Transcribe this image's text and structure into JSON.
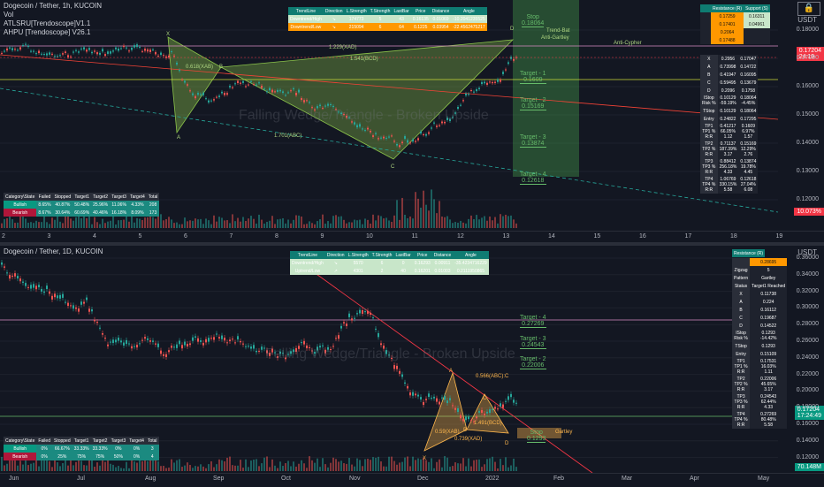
{
  "top": {
    "title": "Dogecoin / Tether, 1h, KUCOIN",
    "indicators": [
      "Vol",
      "ATLSRU[Trendoscope]V1.1",
      "AHPU [Trendoscope] V26.1"
    ],
    "currency": "USDT",
    "sync_icon": "lock-icon",
    "y_ticks": [
      "0.18000",
      "0.17000",
      "0.16000",
      "0.15000",
      "0.14000",
      "0.13000",
      "0.12000"
    ],
    "x_ticks": [
      "2",
      "3",
      "4",
      "5",
      "6",
      "7",
      "8",
      "9",
      "10",
      "11",
      "12",
      "13",
      "14",
      "15",
      "16",
      "17",
      "18",
      "19"
    ],
    "price_badge": "0.17204",
    "price_time": "24:19",
    "pct_badge": "10.073%",
    "watermark": "Falling Wedge/Triangle - Broken Upside",
    "trend_table": {
      "headers": [
        "TrendLine",
        "Direction",
        "L.Strength",
        "T.Strength",
        "LastBar",
        "Price",
        "Distance",
        "Angle"
      ],
      "rows": [
        [
          "Downtrend/High",
          "↘",
          "174773",
          "5",
          "43",
          "0.16135",
          "0.01069",
          "-10.2041235525"
        ],
        [
          "Downtrend/Low",
          "↘",
          "215094",
          "6",
          "64",
          "0.1225",
          "0.03954",
          "-22.4562475217"
        ]
      ]
    },
    "stats_table": {
      "headers": [
        "Category\\State",
        "Failed",
        "Stopped",
        "Target1",
        "Target2",
        "Target3",
        "Target4",
        "Total"
      ],
      "rows": [
        [
          "Bullish",
          "8.65%",
          "40.87%",
          "50.48%",
          "25.96%",
          "11.06%",
          "4.33%",
          "208"
        ],
        [
          "Bearish",
          "8.67%",
          "30.64%",
          "60.69%",
          "40.46%",
          "16.18%",
          "8.09%",
          "173"
        ]
      ]
    },
    "targets": [
      {
        "label": "Stop",
        "value": "0.18064"
      },
      {
        "label": "Target - 1",
        "value": "0.1609"
      },
      {
        "label": "Target - 2",
        "value": "0.15169"
      },
      {
        "label": "Target - 3",
        "value": "0.13874"
      },
      {
        "label": "Target - 4",
        "value": "0.12618"
      }
    ],
    "pattern_labels": [
      "X",
      "A",
      "B",
      "C",
      "D"
    ],
    "annotations": [
      "0.618(XAB)",
      "1.229(XAD)",
      "1.541(BCD)",
      "1.701(ABC)",
      "Trend-Bat",
      "Anti-Gartley",
      "Anti-Cypher"
    ],
    "res_sup_table": {
      "headers": [
        "Resistance (R)",
        "Support (S)"
      ],
      "rows": [
        [
          "0.17259",
          "0.16311"
        ],
        [
          "0.17401",
          "0.04961"
        ],
        [
          "0.2064",
          ""
        ],
        [
          "0.17488",
          ""
        ]
      ]
    },
    "pattern_table": [
      [
        "X",
        "0.2956",
        "0.17047"
      ],
      [
        "A",
        "0.73998",
        "0.14722"
      ],
      [
        "B",
        "0.41947",
        "0.16095"
      ],
      [
        "C",
        "0.59495",
        "0.13679"
      ],
      [
        "D",
        "0.2096",
        "0.1758"
      ],
      [
        "IStop\nRisk %",
        "0.10129\n-59.19%",
        "0.18064\n-4.45%"
      ],
      [
        "TStop",
        "0.10129",
        "0.18064"
      ],
      [
        "Entry",
        "0.24822",
        "0.17295"
      ],
      [
        "TP1\nTP1 %\nR:R",
        "0.41217\n66.05%\n1.12",
        "0.1609\n6.97%\n1.57"
      ],
      [
        "TP2\nTP2 %\nR:R",
        "0.71137\n187.39%\n3.17",
        "0.15169\n12.29%\n2.76"
      ],
      [
        "TP3\nTP3 %\nR:R",
        "0.88412\n256.18%\n4.33",
        "0.13874\n19.78%\n4.45"
      ],
      [
        "TP4\nTP4 %\nR:R",
        "1.06769\n330.15%\n5.58",
        "0.12618\n27.04%\n6.08"
      ]
    ]
  },
  "bottom": {
    "title": "Dogecoin / Tether, 1D, KUCOIN",
    "currency": "USDT",
    "y_ticks": [
      "0.36000",
      "0.34000",
      "0.32000",
      "0.30000",
      "0.28000",
      "0.26000",
      "0.24000",
      "0.22000",
      "0.20000",
      "0.18000",
      "0.16000",
      "0.14000",
      "0.12000"
    ],
    "x_ticks": [
      "Jun",
      "Jul",
      "Aug",
      "Sep",
      "Oct",
      "Nov",
      "Dec",
      "2022",
      "Feb",
      "Mar",
      "Apr",
      "May"
    ],
    "price_badge": "0.17204",
    "price_time": "17:24:49",
    "pct_badge": "70.148M",
    "watermark": "Falling Wedge/Triangle - Broken Upside",
    "trend_table": {
      "headers": [
        "TrendLine",
        "Direction",
        "L.Strength",
        "T.Strength",
        "LastBar",
        "Price",
        "Distance",
        "Angle"
      ],
      "rows": [
        [
          "Downtrend/High",
          "↘",
          "5570",
          "6",
          "0",
          "0.16293",
          "0.00911",
          "-35.4234716229"
        ],
        [
          "Uptrend/Low",
          "↗",
          "4301",
          "2",
          "40",
          "0.16201",
          "0.01003",
          "0.2111950865"
        ]
      ]
    },
    "stats_table": {
      "headers": [
        "Category\\State",
        "Failed",
        "Stopped",
        "Target1",
        "Target2",
        "Target3",
        "Target4",
        "Total"
      ],
      "rows": [
        [
          "Bullish",
          "0%",
          "66.67%",
          "33.33%",
          "33.33%",
          "0%",
          "0%",
          "3"
        ],
        [
          "Bearish",
          "0%",
          "25%",
          "75%",
          "75%",
          "50%",
          "0%",
          "4"
        ]
      ]
    },
    "targets": [
      {
        "label": "Target - 4",
        "value": "0.27269"
      },
      {
        "label": "Target - 3",
        "value": "0.24543"
      },
      {
        "label": "Target - 2",
        "value": "0.22006"
      },
      {
        "label": "Stop",
        "value": "0.1293"
      }
    ],
    "pattern_labels": [
      "X",
      "A",
      "B",
      "C",
      "D"
    ],
    "annotations": [
      "0.566(ABC):C",
      "0.59(XAB)",
      "0.739(XAD)",
      "1.491(BCD)",
      "Gartley"
    ],
    "resistance_header": "Resistance (R)",
    "pattern_table": [
      [
        "",
        "0.28695"
      ],
      [
        "Zigzag",
        "5"
      ],
      [
        "Pattern",
        "Gartley"
      ],
      [
        "Status",
        "Target1 Reached"
      ],
      [
        "X",
        "0.11738"
      ],
      [
        "A",
        "0.224"
      ],
      [
        "B",
        "0.16112"
      ],
      [
        "C",
        "0.19687"
      ],
      [
        "D",
        "0.14522"
      ],
      [
        "IStop\nRisk %",
        "0.1293\n-14.42%"
      ],
      [
        "TStop",
        "0.1293"
      ],
      [
        "Entry",
        "0.15109"
      ],
      [
        "TP1\nTP1 %\nR:R",
        "0.17531\n16.03%\n1.11"
      ],
      [
        "TP2\nTP2 %\nR:R",
        "0.22006\n45.65%\n3.17"
      ],
      [
        "TP3\nTP3 %\nR:R",
        "0.24543\n62.44%\n4.33"
      ],
      [
        "TP4\nTP4 %\nR:R",
        "0.27269\n80.48%\n5.58"
      ]
    ]
  }
}
